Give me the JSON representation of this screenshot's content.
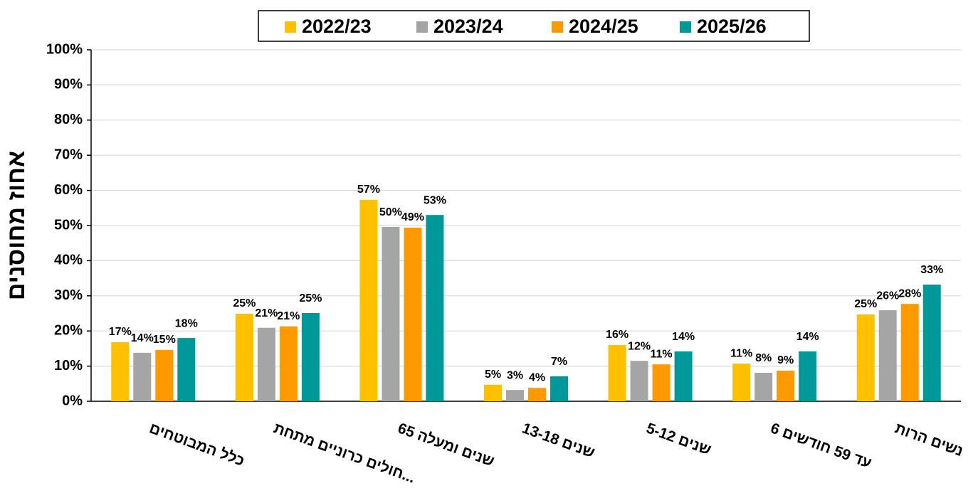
{
  "chart_data": {
    "type": "bar",
    "y_axis_label": "אחוז מחוסנים",
    "categories": [
      "כלל המבוטחים",
      "חולים כרוניים מתחת...",
      "65 שנים ומעלה",
      "13-18 שנים",
      "5-12 שנים",
      "6 עד 59 חודשים",
      "נשים הרות"
    ],
    "series": [
      {
        "name": "2022/23",
        "color": "#FFC000",
        "values": [
          16.8,
          24.9,
          57.3,
          4.7,
          16.0,
          10.7,
          24.7
        ],
        "value_labels": [
          "17%",
          "25%",
          "57%",
          "5%",
          "16%",
          "11%",
          "25%"
        ]
      },
      {
        "name": "2023/24",
        "color": "#A5A5A5",
        "values": [
          13.8,
          20.9,
          49.6,
          3.2,
          11.5,
          8.1,
          25.9
        ],
        "value_labels": [
          "14%",
          "21%",
          "50%",
          "3%",
          "12%",
          "8%",
          "26%"
        ]
      },
      {
        "name": "2024/25",
        "color": "#FF9900",
        "values": [
          14.6,
          21.3,
          49.4,
          3.8,
          10.5,
          8.7,
          27.7
        ],
        "value_labels": [
          "15%",
          "21%",
          "49%",
          "4%",
          "11%",
          "9%",
          "28%"
        ]
      },
      {
        "name": "2025/26",
        "color": "#009999",
        "values": [
          18.0,
          25.1,
          53.0,
          7.1,
          14.2,
          14.2,
          33.2
        ],
        "value_labels": [
          "18%",
          "25%",
          "53%",
          "7%",
          "14%",
          "14%",
          "33%"
        ]
      }
    ],
    "ylim": [
      0,
      100
    ],
    "yticks": [
      {
        "value": 0,
        "label": "0%"
      },
      {
        "value": 10,
        "label": "10%"
      },
      {
        "value": 20,
        "label": "20%"
      },
      {
        "value": 30,
        "label": "30%"
      },
      {
        "value": 40,
        "label": "40%"
      },
      {
        "value": 50,
        "label": "50%"
      },
      {
        "value": 60,
        "label": "60%"
      },
      {
        "value": 70,
        "label": "70%"
      },
      {
        "value": 80,
        "label": "80%"
      },
      {
        "value": 90,
        "label": "90%"
      },
      {
        "value": 100,
        "label": "100%"
      }
    ],
    "grid": true,
    "legend": "top"
  }
}
